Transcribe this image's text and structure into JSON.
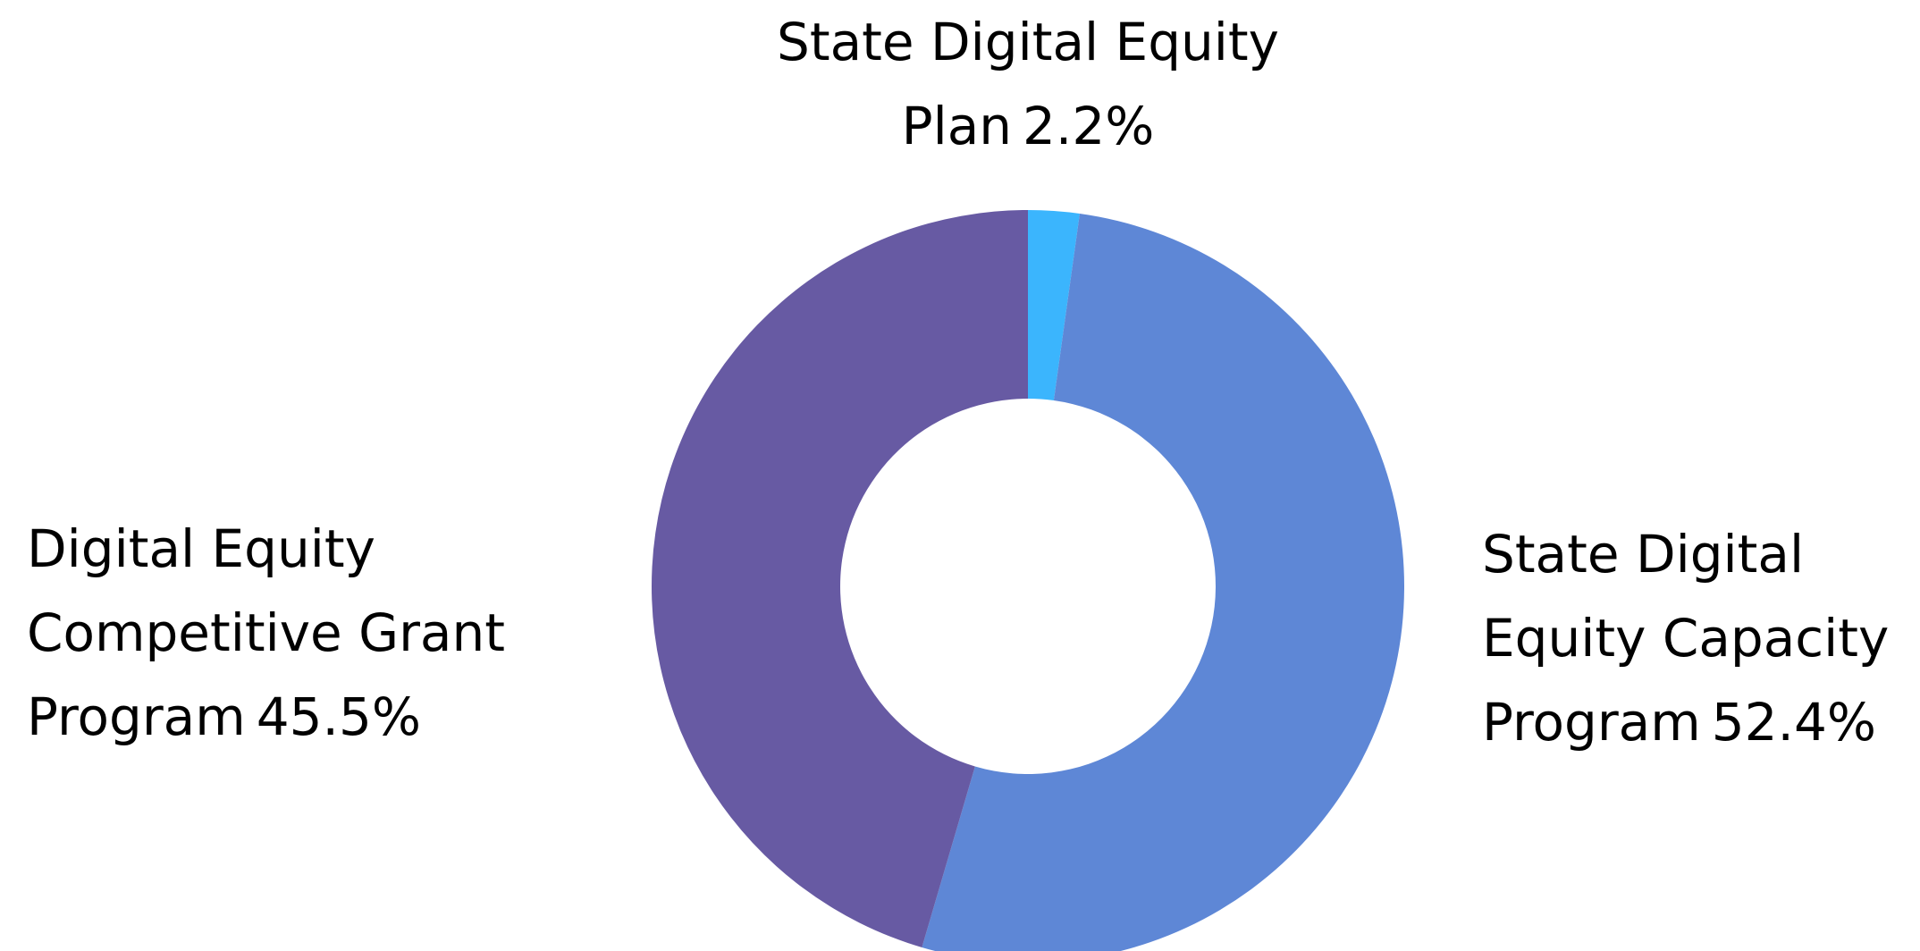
{
  "chart_data": {
    "type": "donut",
    "categories": [
      "State Digital Equity Plan",
      "State Digital Equity Capacity Program",
      "Digital Equity Competitive Grant Program"
    ],
    "values": [
      2.2,
      52.4,
      45.5
    ],
    "value_labels": [
      "2.2%",
      "52.4%",
      "45.5%"
    ],
    "colors": [
      "#3bb5fd",
      "#5e87d6",
      "#675aa3"
    ]
  }
}
